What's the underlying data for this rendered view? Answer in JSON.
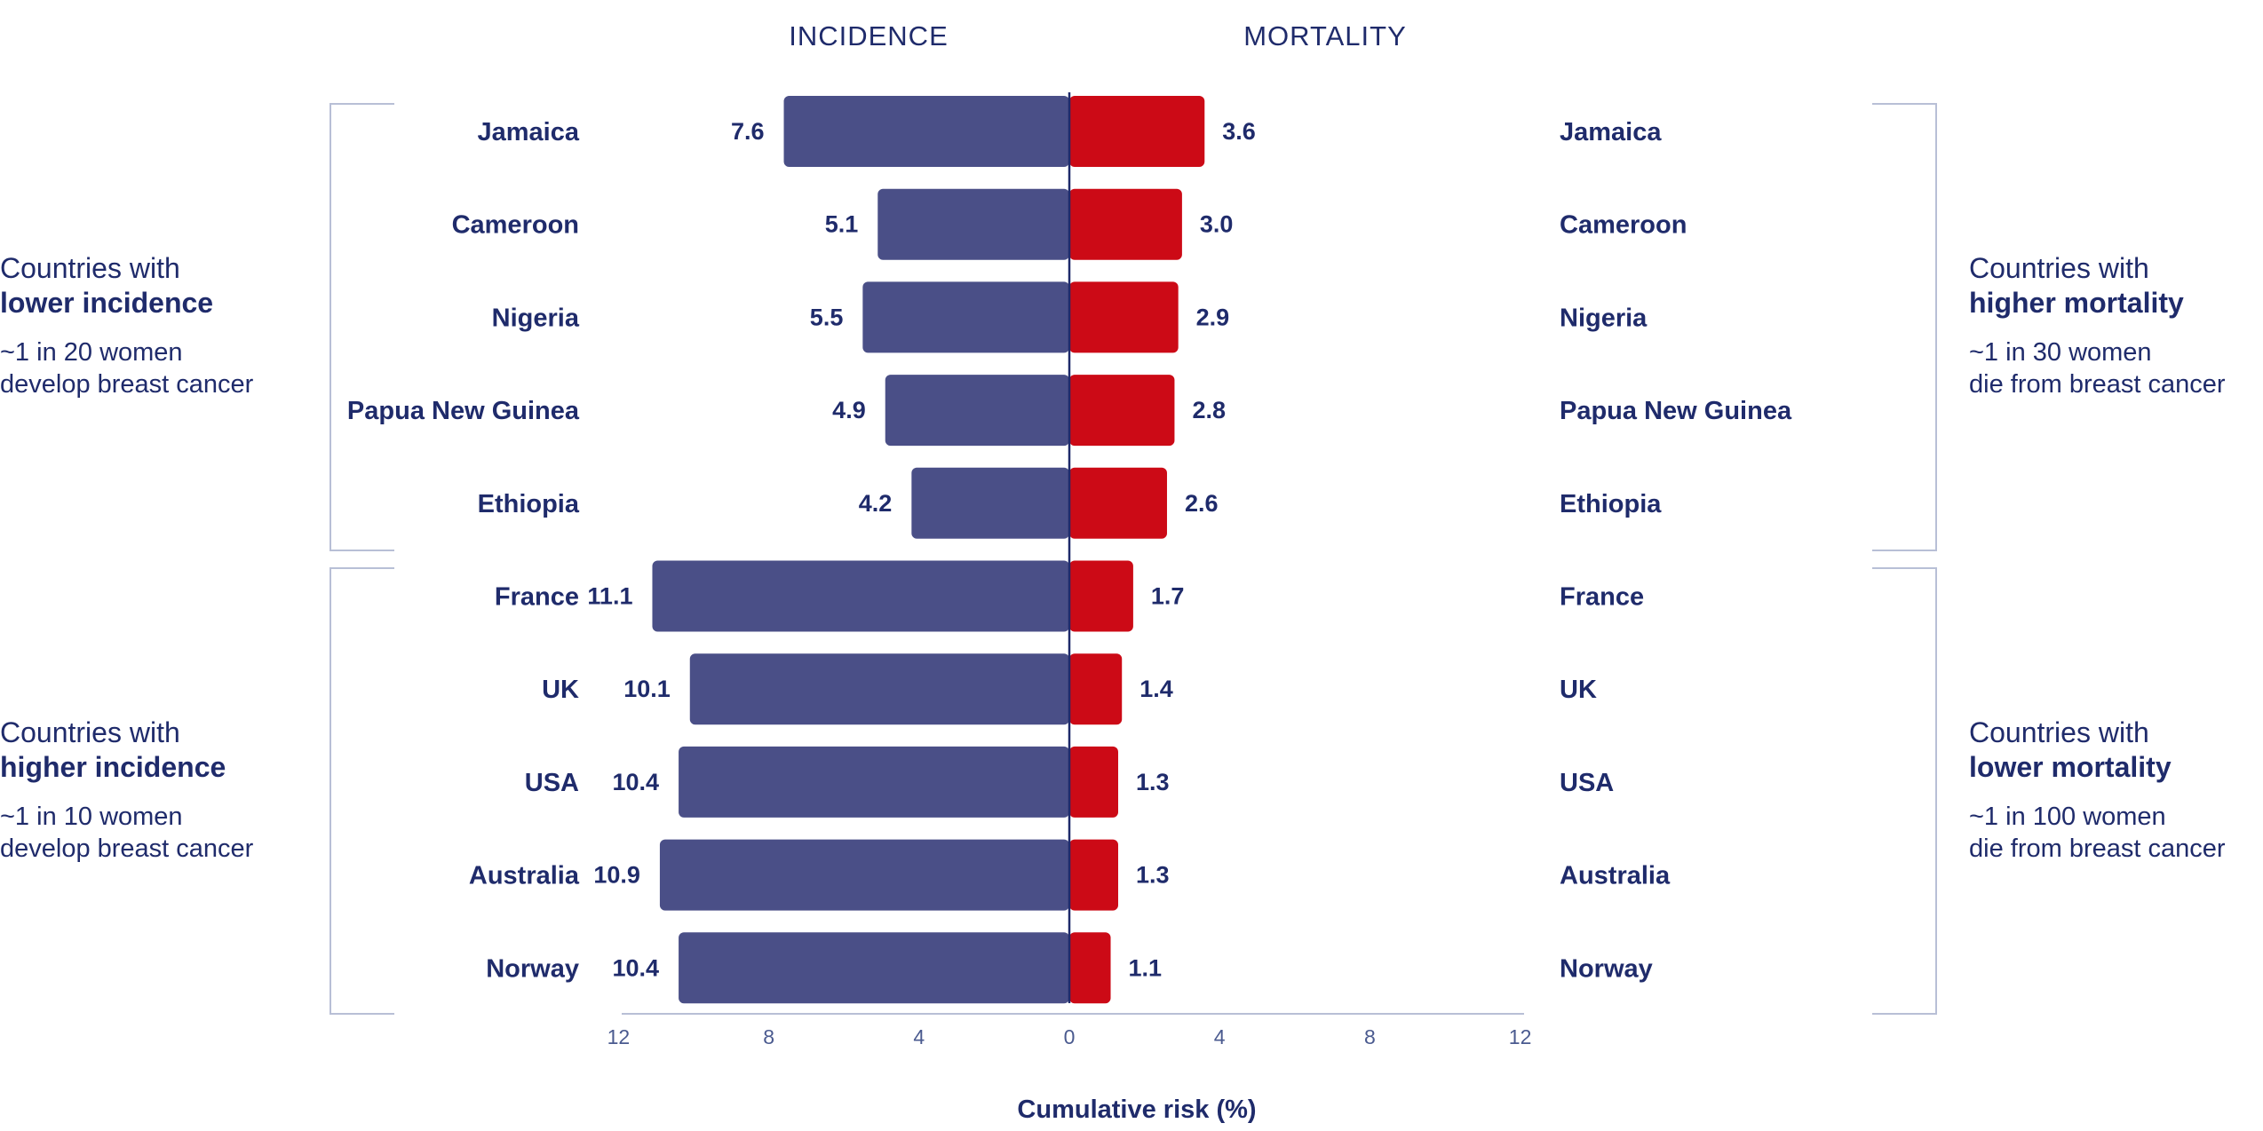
{
  "chart_data": {
    "type": "bar",
    "orientation": "horizontal-diverging",
    "left_panel_title": "INCIDENCE",
    "right_panel_title": "MORTALITY",
    "xlabel": "Cumulative risk (%)",
    "xlim": [
      0,
      12
    ],
    "ticks_left": [
      "12",
      "8",
      "4",
      "0"
    ],
    "ticks_right": [
      "4",
      "8",
      "12"
    ],
    "categories": [
      "Jamaica",
      "Cameroon",
      "Nigeria",
      "Papua New Guinea",
      "Ethiopia",
      "France",
      "UK",
      "USA",
      "Australia",
      "Norway"
    ],
    "series": [
      {
        "name": "INCIDENCE",
        "color": "#4a4f87",
        "values": [
          7.6,
          5.1,
          5.5,
          4.9,
          4.2,
          11.1,
          10.1,
          10.4,
          10.9,
          10.4
        ],
        "labels": [
          "7.6",
          "5.1",
          "5.5",
          "4.9",
          "4.2",
          "11.1",
          "10.1",
          "10.4",
          "10.9",
          "10.4"
        ]
      },
      {
        "name": "MORTALITY",
        "color": "#cc0a16",
        "values": [
          3.6,
          3.0,
          2.9,
          2.8,
          2.6,
          1.7,
          1.4,
          1.3,
          1.3,
          1.1
        ],
        "labels": [
          "3.6",
          "3.0",
          "2.9",
          "2.8",
          "2.6",
          "1.7",
          "1.4",
          "1.3",
          "1.3",
          "1.1"
        ]
      }
    ],
    "grid": false
  },
  "groups": {
    "left_top": {
      "line1": "Countries with",
      "line2": "lower incidence",
      "line3": "~1 in 20 women",
      "line4": "develop breast cancer"
    },
    "left_bottom": {
      "line1": "Countries with",
      "line2": "higher incidence",
      "line3": "~1 in 10 women",
      "line4": "develop breast cancer"
    },
    "right_top": {
      "line1": "Countries with",
      "line2": "higher mortality",
      "line3": "~1 in 30 women",
      "line4": "die from breast cancer"
    },
    "right_bottom": {
      "line1": "Countries with",
      "line2": "lower mortality",
      "line3": "~1 in 100 women",
      "line4": "die from breast cancer"
    }
  },
  "colors": {
    "text": "#1f2b6b",
    "incidence": "#4a4f87",
    "mortality": "#cc0a16",
    "axis": "#b8bfd6",
    "bracket": "#b8bfd6"
  }
}
